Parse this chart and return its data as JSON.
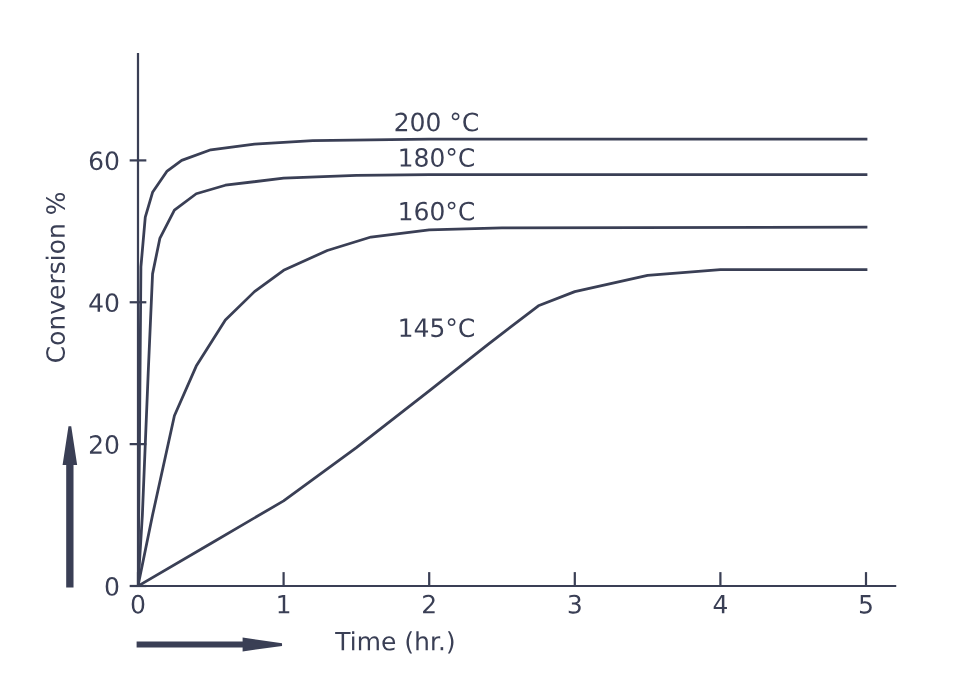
{
  "chart_data": {
    "type": "line",
    "xlabel": "Time (hr.)",
    "ylabel": "Conversion %",
    "xlim": [
      0,
      5.2
    ],
    "ylim": [
      0,
      75
    ],
    "xticks": [
      0,
      1,
      2,
      3,
      4,
      5
    ],
    "yticks": [
      0,
      20,
      40,
      60
    ],
    "grid": false,
    "marker": "none",
    "line_style": "solid",
    "series": [
      {
        "name": "200 °C",
        "color": "#3a3f55",
        "x": [
          0,
          0.01,
          0.02,
          0.05,
          0.1,
          0.2,
          0.3,
          0.5,
          0.8,
          1.2,
          2,
          5
        ],
        "values": [
          0,
          20,
          45,
          52,
          55.5,
          58.5,
          60,
          61.5,
          62.3,
          62.8,
          63,
          63
        ]
      },
      {
        "name": "180°C",
        "color": "#3a3f55",
        "x": [
          0,
          0.03,
          0.07,
          0.1,
          0.15,
          0.25,
          0.4,
          0.6,
          1,
          1.5,
          2,
          5
        ],
        "values": [
          0,
          10,
          30,
          44,
          49,
          53,
          55.3,
          56.5,
          57.5,
          57.9,
          58,
          58
        ]
      },
      {
        "name": "160°C",
        "color": "#3a3f55",
        "x": [
          0,
          0.1,
          0.25,
          0.4,
          0.6,
          0.8,
          1,
          1.3,
          1.6,
          2,
          2.5,
          5
        ],
        "values": [
          0,
          10,
          24,
          31,
          37.5,
          41.5,
          44.5,
          47.3,
          49.2,
          50.2,
          50.5,
          50.6
        ]
      },
      {
        "name": "145°C",
        "color": "#3a3f55",
        "x": [
          0,
          0.5,
          1,
          1.5,
          2,
          2.4,
          2.75,
          3,
          3.5,
          4,
          5
        ],
        "values": [
          0,
          6,
          12,
          19.5,
          27.5,
          34,
          39.5,
          41.5,
          43.8,
          44.6,
          44.6
        ]
      }
    ]
  }
}
